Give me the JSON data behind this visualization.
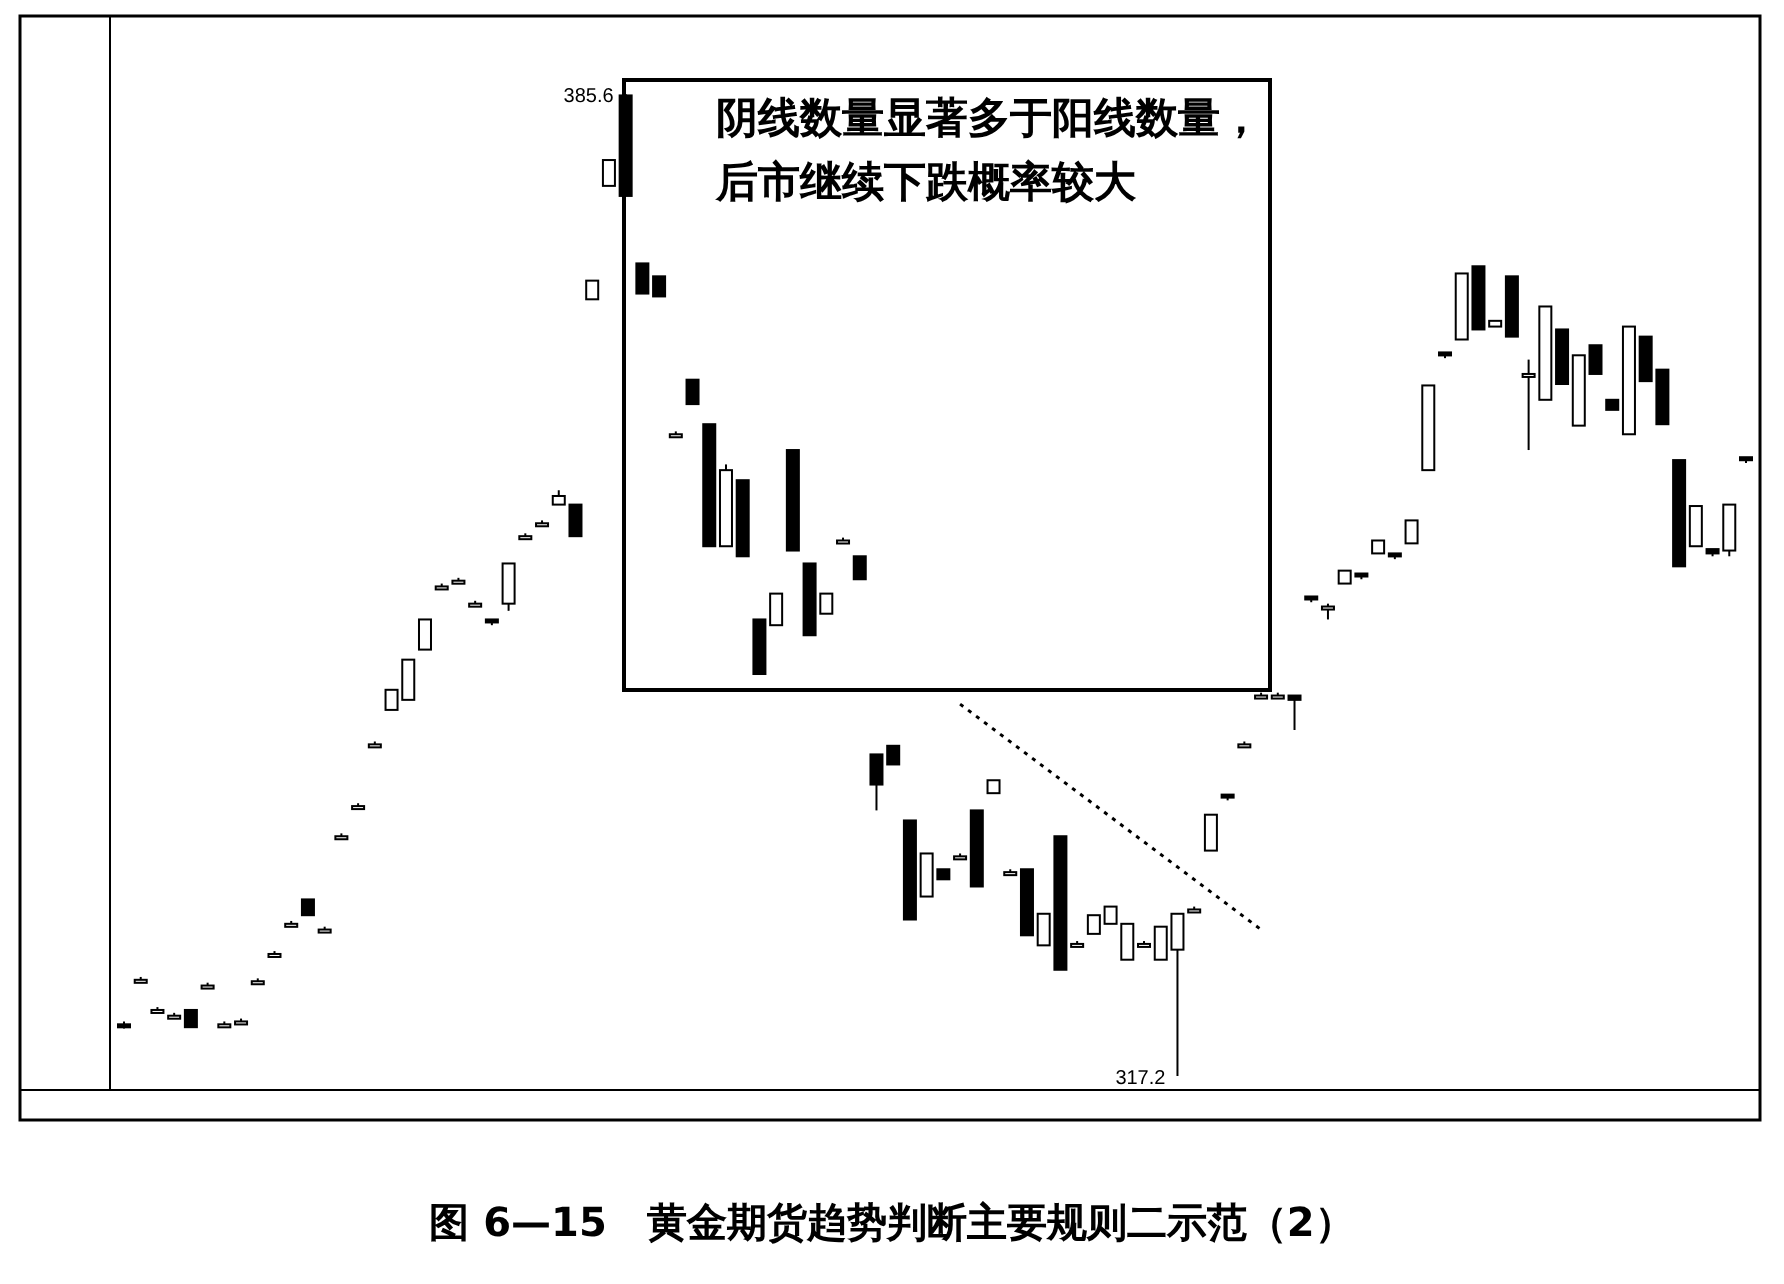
{
  "chart_data": {
    "type": "candlestick",
    "title": "图 6—15　黄金期货趋势判断主要规则二示范（2）",
    "categories": [
      null,
      null,
      null,
      null,
      null,
      null,
      null,
      null,
      null,
      null,
      null,
      null,
      null,
      null,
      null,
      null,
      null,
      null,
      null,
      null,
      null,
      null,
      null,
      null,
      null,
      null,
      null,
      null,
      null,
      null,
      null,
      null,
      null,
      null,
      null,
      null,
      null,
      null,
      null,
      null,
      null,
      null,
      null,
      null,
      null,
      null,
      null,
      null,
      null,
      null,
      null,
      null,
      null,
      null,
      null,
      null,
      null,
      null,
      null,
      null,
      null,
      null,
      null,
      null,
      null,
      null,
      null,
      null,
      null,
      null,
      null,
      null,
      null,
      null,
      null,
      null,
      null,
      null,
      null,
      null,
      null,
      null,
      null,
      null,
      null,
      null,
      null,
      null,
      null,
      null,
      null,
      null,
      null,
      null,
      null,
      null,
      null,
      null
    ],
    "ohlc": [
      [
        320.8,
        321.0,
        320.5,
        320.7
      ],
      [
        323.9,
        324.1,
        323.7,
        323.9
      ],
      [
        321.8,
        322.0,
        321.6,
        321.8
      ],
      [
        321.4,
        321.6,
        321.2,
        321.4
      ],
      [
        321.8,
        321.8,
        320.6,
        320.6
      ],
      [
        323.5,
        323.7,
        323.3,
        323.5
      ],
      [
        320.8,
        321.0,
        320.6,
        320.8
      ],
      [
        321.0,
        321.2,
        320.8,
        321.0
      ],
      [
        323.8,
        324.0,
        323.6,
        323.8
      ],
      [
        325.7,
        325.9,
        325.5,
        325.7
      ],
      [
        327.8,
        328.0,
        327.6,
        327.8
      ],
      [
        329.5,
        329.5,
        328.4,
        328.4
      ],
      [
        327.4,
        327.6,
        327.2,
        327.4
      ],
      [
        333.9,
        334.1,
        333.7,
        333.9
      ],
      [
        336.0,
        336.2,
        335.8,
        336.0
      ],
      [
        340.3,
        340.5,
        340.1,
        340.3
      ],
      [
        342.7,
        344.1,
        342.7,
        344.1
      ],
      [
        343.4,
        346.2,
        343.4,
        346.2
      ],
      [
        346.9,
        349.0,
        346.9,
        349.0
      ],
      [
        351.3,
        351.5,
        351.1,
        351.3
      ],
      [
        351.7,
        351.9,
        351.5,
        351.7
      ],
      [
        350.1,
        350.3,
        349.9,
        350.1
      ],
      [
        349.0,
        349.0,
        348.6,
        348.8
      ],
      [
        350.1,
        352.9,
        349.6,
        352.9
      ],
      [
        354.8,
        355.0,
        354.6,
        354.8
      ],
      [
        355.7,
        355.9,
        355.5,
        355.7
      ],
      [
        357.0,
        358.0,
        357.0,
        357.6
      ],
      [
        357.0,
        357.0,
        354.8,
        354.8
      ],
      [
        371.3,
        372.6,
        371.3,
        372.6
      ],
      [
        379.2,
        381.0,
        379.2,
        381.0
      ],
      [
        385.5,
        385.6,
        378.5,
        378.5
      ],
      [
        373.8,
        373.8,
        371.7,
        371.7
      ],
      [
        372.9,
        372.9,
        371.5,
        371.5
      ],
      [
        361.9,
        362.1,
        361.7,
        361.9
      ],
      [
        365.7,
        365.7,
        364.0,
        364.0
      ],
      [
        362.6,
        362.6,
        354.1,
        354.1
      ],
      [
        354.1,
        359.8,
        354.1,
        359.4
      ],
      [
        358.7,
        358.7,
        353.4,
        353.4
      ],
      [
        349.0,
        349.0,
        345.2,
        345.2
      ],
      [
        348.6,
        350.8,
        348.6,
        350.8
      ],
      [
        360.8,
        360.8,
        353.8,
        353.8
      ],
      [
        352.9,
        352.9,
        347.9,
        347.9
      ],
      [
        349.4,
        350.8,
        349.4,
        350.8
      ],
      [
        354.5,
        354.7,
        354.3,
        354.5
      ],
      [
        353.4,
        353.4,
        351.8,
        351.8
      ],
      [
        339.6,
        339.6,
        335.7,
        337.5
      ],
      [
        340.2,
        340.2,
        338.9,
        338.9
      ],
      [
        335.0,
        335.0,
        328.1,
        328.1
      ],
      [
        329.7,
        332.7,
        329.7,
        332.7
      ],
      [
        331.6,
        331.6,
        330.9,
        330.9
      ],
      [
        332.5,
        332.7,
        332.3,
        332.5
      ],
      [
        335.7,
        335.7,
        330.4,
        330.4
      ],
      [
        336.9,
        337.8,
        336.9,
        337.8
      ],
      [
        331.4,
        331.6,
        331.2,
        331.4
      ],
      [
        331.6,
        331.6,
        327.0,
        327.0
      ],
      [
        326.3,
        328.5,
        326.3,
        328.5
      ],
      [
        333.9,
        333.9,
        324.6,
        324.6
      ],
      [
        326.4,
        326.6,
        326.2,
        326.4
      ],
      [
        327.1,
        328.4,
        327.1,
        328.4
      ],
      [
        327.8,
        329.0,
        327.8,
        329.0
      ],
      [
        325.3,
        327.8,
        325.3,
        327.8
      ],
      [
        326.4,
        326.6,
        326.2,
        326.4
      ],
      [
        325.3,
        327.6,
        325.3,
        327.6
      ],
      [
        326.0,
        328.5,
        317.2,
        328.5
      ],
      [
        328.8,
        329.0,
        328.6,
        328.8
      ],
      [
        332.9,
        335.4,
        332.9,
        335.4
      ],
      [
        336.8,
        336.8,
        336.4,
        336.6
      ],
      [
        340.3,
        340.5,
        340.1,
        340.3
      ],
      [
        343.7,
        343.9,
        343.5,
        343.7
      ],
      [
        343.7,
        343.9,
        343.5,
        343.7
      ],
      [
        343.7,
        343.7,
        341.3,
        343.4
      ],
      [
        350.6,
        350.6,
        350.2,
        350.4
      ],
      [
        349.9,
        350.1,
        349.0,
        349.9
      ],
      [
        351.5,
        352.4,
        351.5,
        352.4
      ],
      [
        352.2,
        352.2,
        351.8,
        352.0
      ],
      [
        353.6,
        354.5,
        353.6,
        354.5
      ],
      [
        353.6,
        353.6,
        353.2,
        353.4
      ],
      [
        354.3,
        355.9,
        354.3,
        355.9
      ],
      [
        359.4,
        365.3,
        359.4,
        365.3
      ],
      [
        367.6,
        367.6,
        367.2,
        367.4
      ],
      [
        368.5,
        373.1,
        368.5,
        373.1
      ],
      [
        373.6,
        373.6,
        369.2,
        369.2
      ],
      [
        369.4,
        369.8,
        369.4,
        369.8
      ],
      [
        372.9,
        372.9,
        368.7,
        368.7
      ],
      [
        366.1,
        367.1,
        360.8,
        366.1
      ],
      [
        364.3,
        370.8,
        364.3,
        370.8
      ],
      [
        369.2,
        369.2,
        365.4,
        365.4
      ],
      [
        362.5,
        367.4,
        362.5,
        367.4
      ],
      [
        368.1,
        368.1,
        366.1,
        366.1
      ],
      [
        364.3,
        364.3,
        363.6,
        363.6
      ],
      [
        361.9,
        369.4,
        361.9,
        369.4
      ],
      [
        368.7,
        368.7,
        365.6,
        365.6
      ],
      [
        366.4,
        366.4,
        362.6,
        362.6
      ],
      [
        360.1,
        360.1,
        352.7,
        352.7
      ],
      [
        354.1,
        356.9,
        354.1,
        356.9
      ],
      [
        353.9,
        353.9,
        353.4,
        353.6
      ],
      [
        353.8,
        357.0,
        353.4,
        357.0
      ],
      [
        360.3,
        360.3,
        359.9,
        360.1
      ]
    ],
    "series": [
      {
        "type": "line",
        "color": "#000000",
        "line_style": "dotted",
        "values": [
          null,
          null,
          null,
          null,
          null,
          null,
          null,
          null,
          null,
          null,
          null,
          null,
          null,
          null,
          null,
          null,
          null,
          null,
          null,
          null,
          null,
          null,
          null,
          null,
          null,
          null,
          null,
          null,
          null,
          null,
          null,
          null,
          null,
          null,
          null,
          null,
          null,
          null,
          null,
          null,
          null,
          null,
          null,
          null,
          null,
          null,
          null,
          null,
          null,
          null,
          343.1,
          null,
          null,
          null,
          null,
          null,
          null,
          null,
          null,
          null,
          null,
          null,
          null,
          null,
          null,
          null,
          null,
          null,
          327.4,
          null,
          null,
          null,
          null,
          null,
          null,
          null,
          null,
          null,
          null,
          null,
          null,
          null,
          null,
          null,
          null,
          null,
          null,
          null,
          null,
          null,
          null,
          null,
          null,
          null,
          null,
          null,
          null,
          null
        ]
      }
    ],
    "annotations": [
      "阴线数量显著多于阳线数量，",
      "后市继续下跌概率较大",
      "385.6",
      "317.2"
    ]
  }
}
